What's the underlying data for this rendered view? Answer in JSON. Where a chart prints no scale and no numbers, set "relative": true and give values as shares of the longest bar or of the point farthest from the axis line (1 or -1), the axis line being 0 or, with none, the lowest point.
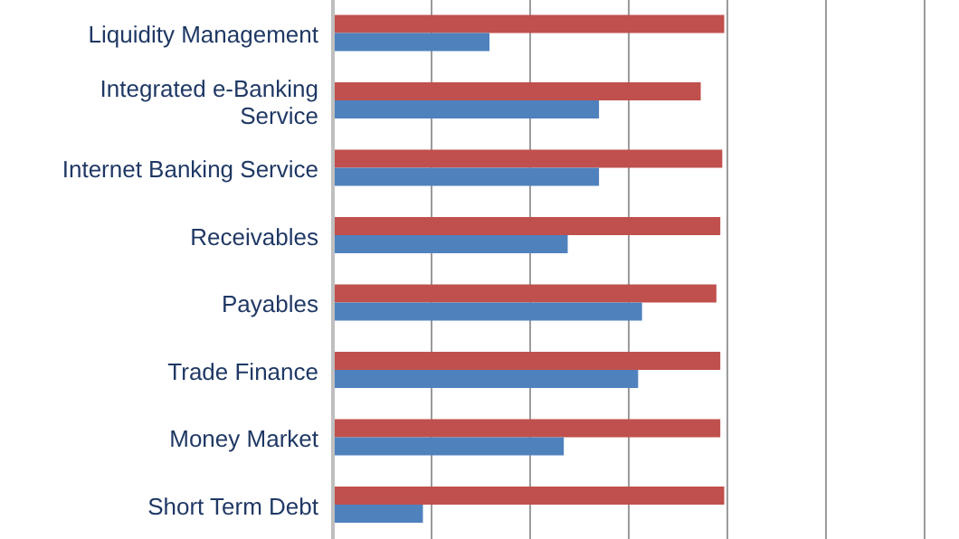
{
  "chart_data": {
    "type": "bar",
    "orientation": "horizontal",
    "relative": true,
    "grid": "x",
    "categories": [
      "Liquidity Management",
      "Integrated e-Banking Service",
      "Internet Banking Service",
      "Receivables",
      "Payables",
      "Trade Finance",
      "Money Market",
      "Short Term Debt"
    ],
    "series": [
      {
        "color": "#c0504d",
        "values": [
          1,
          0.94,
          0.995,
          0.99,
          0.98,
          0.99,
          0.99,
          1
        ]
      },
      {
        "color": "#4f81bd",
        "values": [
          0.4,
          0.68,
          0.68,
          0.6,
          0.79,
          0.78,
          0.59,
          0.23
        ]
      }
    ]
  }
}
